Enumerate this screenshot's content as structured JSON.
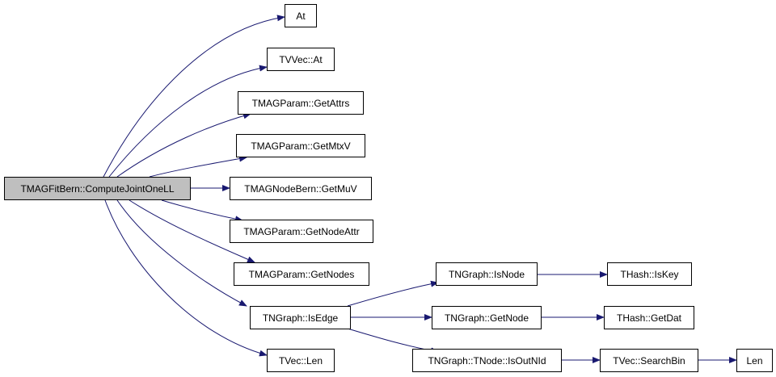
{
  "graph": {
    "edge_color": "#191970",
    "root_fill": "#bfbfbf",
    "nodes": {
      "root": "TMAGFitBern::ComputeJointOneLL",
      "at": "At",
      "tvvec_at": "TVVec::At",
      "get_attrs": "TMAGParam::GetAttrs",
      "get_mtxv": "TMAGParam::GetMtxV",
      "get_muv": "TMAGNodeBern::GetMuV",
      "get_node_attr": "TMAGParam::GetNodeAttr",
      "get_nodes": "TMAGParam::GetNodes",
      "is_edge": "TNGraph::IsEdge",
      "tvec_len": "TVec::Len",
      "is_node": "TNGraph::IsNode",
      "get_node": "TNGraph::GetNode",
      "is_out_nid": "TNGraph::TNode::IsOutNId",
      "is_key": "THash::IsKey",
      "get_dat": "THash::GetDat",
      "search_bin": "TVec::SearchBin",
      "len": "Len"
    },
    "edges": [
      [
        "root",
        "at"
      ],
      [
        "root",
        "tvvec_at"
      ],
      [
        "root",
        "get_attrs"
      ],
      [
        "root",
        "get_mtxv"
      ],
      [
        "root",
        "get_muv"
      ],
      [
        "root",
        "get_node_attr"
      ],
      [
        "root",
        "get_nodes"
      ],
      [
        "root",
        "is_edge"
      ],
      [
        "root",
        "tvec_len"
      ],
      [
        "is_edge",
        "is_node"
      ],
      [
        "is_edge",
        "get_node"
      ],
      [
        "is_edge",
        "is_out_nid"
      ],
      [
        "is_node",
        "is_key"
      ],
      [
        "get_node",
        "get_dat"
      ],
      [
        "is_out_nid",
        "search_bin"
      ],
      [
        "search_bin",
        "len"
      ]
    ]
  }
}
